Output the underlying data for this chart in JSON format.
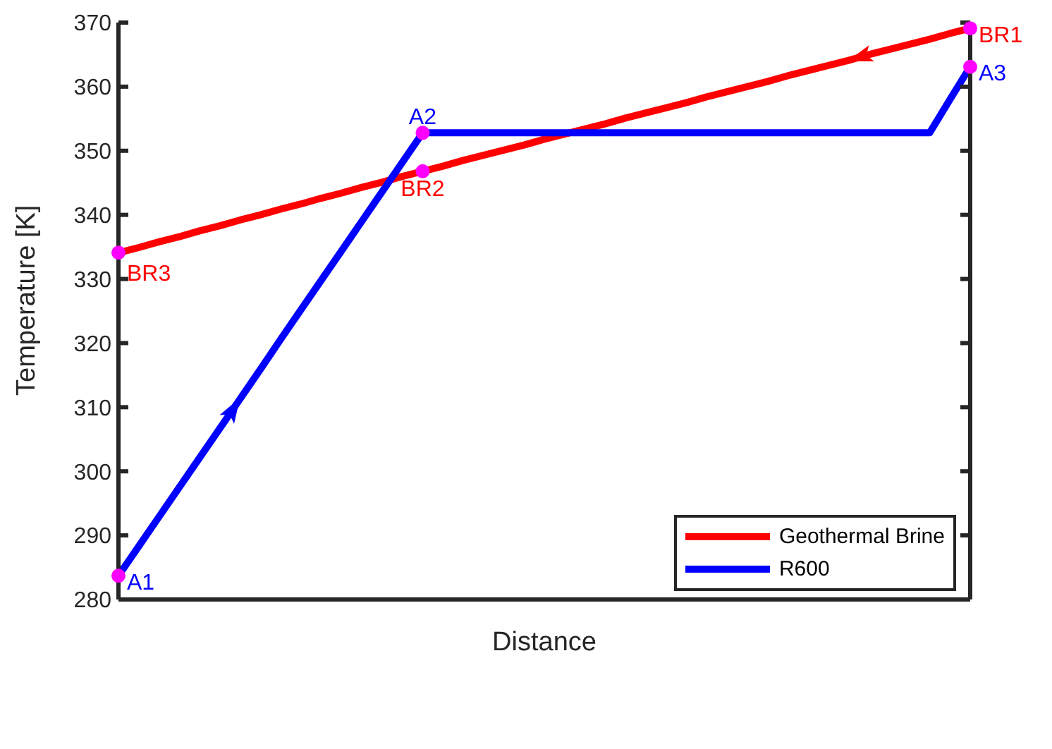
{
  "chart_data": {
    "type": "line",
    "xlabel": "Distance",
    "ylabel": "Temperature [K]",
    "ylim": [
      280,
      370
    ],
    "yticks": [
      280,
      290,
      300,
      310,
      320,
      330,
      340,
      350,
      360,
      370
    ],
    "tick_labels": "y",
    "legend": "bottom right",
    "line_style": "solid",
    "categories": [
      null,
      null,
      null,
      null,
      null,
      null,
      null,
      null,
      null,
      null,
      null,
      null,
      null,
      null,
      null,
      null,
      null,
      null,
      null,
      null,
      null,
      null,
      null,
      null,
      null,
      null,
      null,
      null,
      null,
      null,
      null,
      null,
      null,
      null,
      null,
      null,
      null,
      null,
      null,
      null,
      null,
      null,
      null
    ],
    "series": [
      {
        "name": "Geothermal Brine",
        "color": "#ff0000",
        "values": [
          334.1,
          334.9,
          335.8,
          336.6,
          337.5,
          338.3,
          339.2,
          340.0,
          340.9,
          341.7,
          342.6,
          343.4,
          344.3,
          345.1,
          346.0,
          346.8,
          347.6,
          348.5,
          349.3,
          350.1,
          350.9,
          351.8,
          352.6,
          353.4,
          354.2,
          355.1,
          355.9,
          356.7,
          357.5,
          358.4,
          359.2,
          360.0,
          360.8,
          361.7,
          362.5,
          363.3,
          364.1,
          365.0,
          365.8,
          366.6,
          367.4,
          368.3,
          369.1
        ]
      },
      {
        "name": "R600",
        "color": "#0000ff",
        "values": [
          283.7,
          288.3,
          292.9,
          297.5,
          302.1,
          306.7,
          311.3,
          315.9,
          320.6,
          325.2,
          329.8,
          334.4,
          339.0,
          343.6,
          348.2,
          352.8,
          352.8,
          352.8,
          352.8,
          352.8,
          352.8,
          352.8,
          352.8,
          352.8,
          352.8,
          352.8,
          352.8,
          352.8,
          352.8,
          352.8,
          352.8,
          352.8,
          352.8,
          352.8,
          352.8,
          352.8,
          352.8,
          352.8,
          352.8,
          352.8,
          352.8,
          358.0,
          363.1
        ]
      },
      {
        "type": "scatter",
        "color": "#ff00ff",
        "values": [
          334.1,
          null,
          null,
          null,
          null,
          null,
          null,
          null,
          null,
          null,
          null,
          null,
          null,
          null,
          null,
          352.8,
          null,
          null,
          null,
          null,
          null,
          null,
          null,
          null,
          null,
          null,
          null,
          null,
          null,
          null,
          null,
          null,
          null,
          null,
          null,
          null,
          null,
          null,
          null,
          null,
          null,
          null,
          369.1
        ]
      },
      {
        "type": "scatter",
        "color": "#ff00ff",
        "values": [
          283.7,
          null,
          null,
          null,
          null,
          null,
          null,
          null,
          null,
          null,
          null,
          null,
          null,
          null,
          null,
          346.8,
          null,
          null,
          null,
          null,
          null,
          null,
          null,
          null,
          null,
          null,
          null,
          null,
          null,
          null,
          null,
          null,
          null,
          null,
          null,
          null,
          null,
          null,
          null,
          null,
          null,
          null,
          363.1
        ]
      }
    ],
    "annotations": [
      "BR3",
      "A2",
      "BR1",
      "A1",
      "BR2",
      "A3"
    ]
  }
}
